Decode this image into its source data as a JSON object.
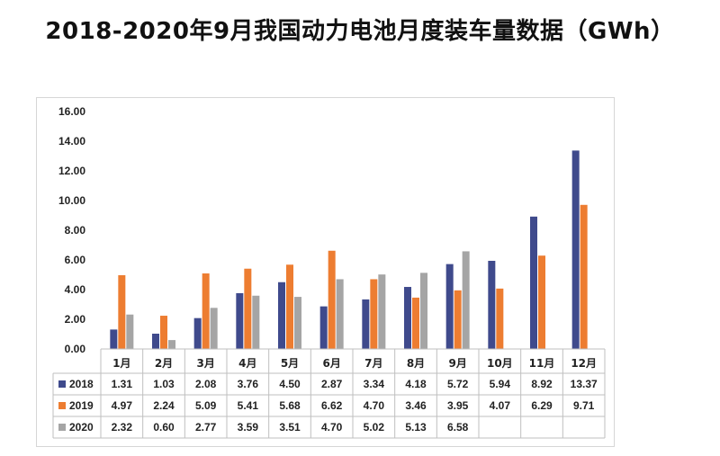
{
  "title": "2018-2020年9月我国动力电池月度装车量数据（GWh）",
  "chart_data": {
    "type": "bar",
    "title": "2018-2020年9月我国动力电池月度装车量数据（GWh）",
    "categories": [
      "1月",
      "2月",
      "3月",
      "4月",
      "5月",
      "6月",
      "7月",
      "8月",
      "9月",
      "10月",
      "11月",
      "12月"
    ],
    "series": [
      {
        "name": "2018",
        "color": "#3f4a8c",
        "values": [
          1.31,
          1.03,
          2.08,
          3.76,
          4.5,
          2.87,
          3.34,
          4.18,
          5.72,
          5.94,
          8.92,
          13.37
        ],
        "labels": [
          "1.31",
          "1.03",
          "2.08",
          "3.76",
          "4.50",
          "2.87",
          "3.34",
          "4.18",
          "5.72",
          "5.94",
          "8.92",
          "13.37"
        ]
      },
      {
        "name": "2019",
        "color": "#ed7d31",
        "values": [
          4.97,
          2.24,
          5.09,
          5.41,
          5.68,
          6.62,
          4.7,
          3.46,
          3.95,
          4.07,
          6.29,
          9.71
        ],
        "labels": [
          "4.97",
          "2.24",
          "5.09",
          "5.41",
          "5.68",
          "6.62",
          "4.70",
          "3.46",
          "3.95",
          "4.07",
          "6.29",
          "9.71"
        ]
      },
      {
        "name": "2020",
        "color": "#a5a5a5",
        "values": [
          2.32,
          0.6,
          2.77,
          3.59,
          3.51,
          4.7,
          5.02,
          5.13,
          6.58,
          null,
          null,
          null
        ],
        "labels": [
          "2.32",
          "0.60",
          "2.77",
          "3.59",
          "3.51",
          "4.70",
          "5.02",
          "5.13",
          "6.58",
          "",
          "",
          ""
        ]
      }
    ],
    "ylim": [
      0,
      16
    ],
    "yticks": [
      "0.00",
      "2.00",
      "4.00",
      "6.00",
      "8.00",
      "10.00",
      "12.00",
      "14.00",
      "16.00"
    ],
    "grid": false,
    "legend": "data-table"
  }
}
